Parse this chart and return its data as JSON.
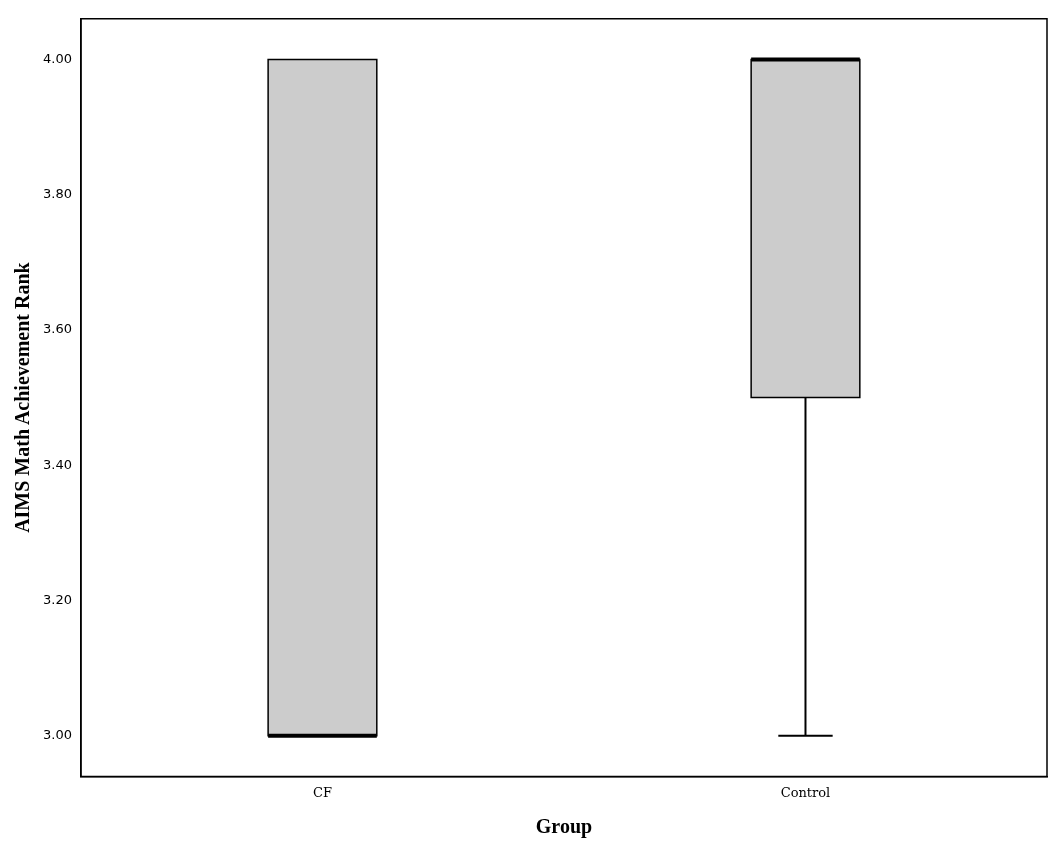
{
  "chart_data": {
    "type": "box",
    "xlabel": "Group",
    "ylabel": "AIMS Math Achievement Rank",
    "categories": [
      "CF",
      "Control"
    ],
    "color": "#cccccc",
    "boxes": [
      {
        "low": 3,
        "q1": 3,
        "median": 3,
        "q3": 4,
        "high": 4
      },
      {
        "low": 3,
        "q1": 3.5,
        "median": 4,
        "q3": 4,
        "high": 4
      }
    ],
    "ylim": [
      2.94,
      4.06
    ],
    "yticks": [
      {
        "value": 3,
        "label": "3.00"
      },
      {
        "value": 3.2,
        "label": "3.20"
      },
      {
        "value": 3.4,
        "label": "3.40"
      },
      {
        "value": 3.6,
        "label": "3.60"
      },
      {
        "value": 3.8,
        "label": "3.80"
      },
      {
        "value": 4,
        "label": "4.00"
      }
    ],
    "grid": false,
    "legend": false
  }
}
